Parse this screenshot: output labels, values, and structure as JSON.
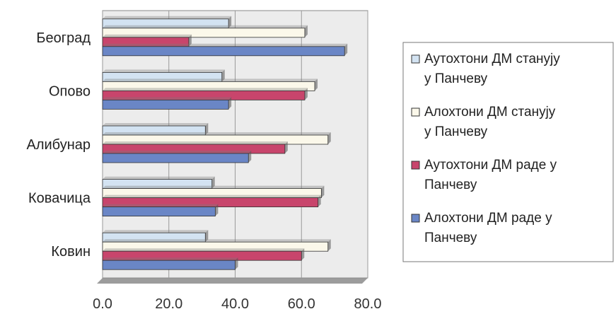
{
  "chart_data": {
    "type": "bar",
    "orientation": "horizontal",
    "categories": [
      "Београд",
      "Опово",
      "Алибунар",
      "Ковачица",
      "Ковин"
    ],
    "series": [
      {
        "name": "Аутохтони ДМ станују у Панчеву",
        "color": "#d3e3f2",
        "values": [
          38,
          36,
          31,
          33,
          31
        ]
      },
      {
        "name": "Алохтони ДМ станују у Панчеву",
        "color": "#fbf8ea",
        "values": [
          61,
          64,
          68,
          66,
          68
        ]
      },
      {
        "name": "Аутохтони ДМ раде у Панчеву",
        "color": "#c8456c",
        "values": [
          26,
          61,
          55,
          65,
          60
        ]
      },
      {
        "name": "Алохтони ДМ раде у Панчеву",
        "color": "#6a86c6",
        "values": [
          73,
          38,
          44,
          34,
          40
        ]
      }
    ],
    "xlim": [
      0,
      80
    ],
    "x_ticks": [
      "0.0",
      "20.0",
      "40.0",
      "60.0",
      "80.0"
    ],
    "grid": true,
    "legend_position": "right",
    "plot_background": "#ececec"
  },
  "legend": {
    "items": [
      {
        "line1": "Аутохтони ДМ станују",
        "line2": "у Панчеву"
      },
      {
        "line1": "Алохтони ДМ станују",
        "line2": "у Панчеву"
      },
      {
        "line1": "Аутохтони ДМ раде у",
        "line2": "Панчеву"
      },
      {
        "line1": "Алохтони ДМ раде у",
        "line2": "Панчеву"
      }
    ]
  }
}
